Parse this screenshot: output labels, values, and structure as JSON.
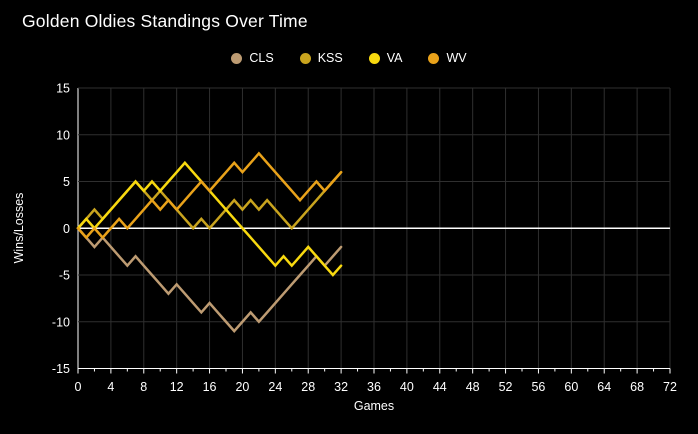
{
  "chart_data": {
    "type": "line",
    "title": "Golden Oldies Standings Over Time",
    "xlabel": "Games",
    "ylabel": "Wins/Losses",
    "xlim": [
      0,
      72
    ],
    "ylim": [
      -15,
      15
    ],
    "xticks": [
      0,
      4,
      8,
      12,
      16,
      20,
      24,
      28,
      32,
      36,
      40,
      44,
      48,
      52,
      56,
      60,
      64,
      68,
      72
    ],
    "yticks": [
      -15,
      -10,
      -5,
      0,
      5,
      10,
      15
    ],
    "grid": true,
    "legend_position": "top-center",
    "background_color": "#000000",
    "grid_color": "#2f2f2f",
    "axis_color": "#ffffff",
    "zero_line_color": "#ffffff",
    "text_color": "#ffffff",
    "x": [
      0,
      1,
      2,
      3,
      4,
      5,
      6,
      7,
      8,
      9,
      10,
      11,
      12,
      13,
      14,
      15,
      16,
      17,
      18,
      19,
      20,
      21,
      22,
      23,
      24,
      25,
      26,
      27,
      28,
      29,
      30,
      31,
      32
    ],
    "series": [
      {
        "name": "CLS",
        "color": "#bd9b72",
        "values": [
          0,
          -1,
          -2,
          -1,
          -2,
          -3,
          -4,
          -3,
          -4,
          -5,
          -6,
          -7,
          -6,
          -7,
          -8,
          -9,
          -8,
          -9,
          -10,
          -11,
          -10,
          -9,
          -10,
          -9,
          -8,
          -7,
          -6,
          -5,
          -4,
          -3,
          -4,
          -3,
          -2
        ]
      },
      {
        "name": "KSS",
        "color": "#c9a41e",
        "values": [
          0,
          1,
          2,
          1,
          2,
          3,
          4,
          5,
          4,
          3,
          4,
          3,
          2,
          1,
          0,
          1,
          0,
          1,
          2,
          3,
          2,
          3,
          2,
          3,
          2,
          1,
          0,
          1,
          2,
          3,
          4,
          5,
          6
        ]
      },
      {
        "name": "VA",
        "color": "#f8d90f",
        "values": [
          0,
          1,
          0,
          1,
          2,
          3,
          4,
          5,
          4,
          5,
          4,
          5,
          6,
          7,
          6,
          5,
          4,
          3,
          2,
          1,
          0,
          -1,
          -2,
          -3,
          -4,
          -3,
          -4,
          -3,
          -2,
          -3,
          -4,
          -5,
          -4
        ]
      },
      {
        "name": "WV",
        "color": "#e9a21a",
        "values": [
          0,
          -1,
          0,
          -1,
          0,
          1,
          0,
          1,
          2,
          3,
          2,
          3,
          2,
          3,
          4,
          5,
          4,
          5,
          6,
          7,
          6,
          7,
          8,
          7,
          6,
          5,
          4,
          3,
          4,
          5,
          4,
          5,
          6
        ]
      }
    ]
  }
}
